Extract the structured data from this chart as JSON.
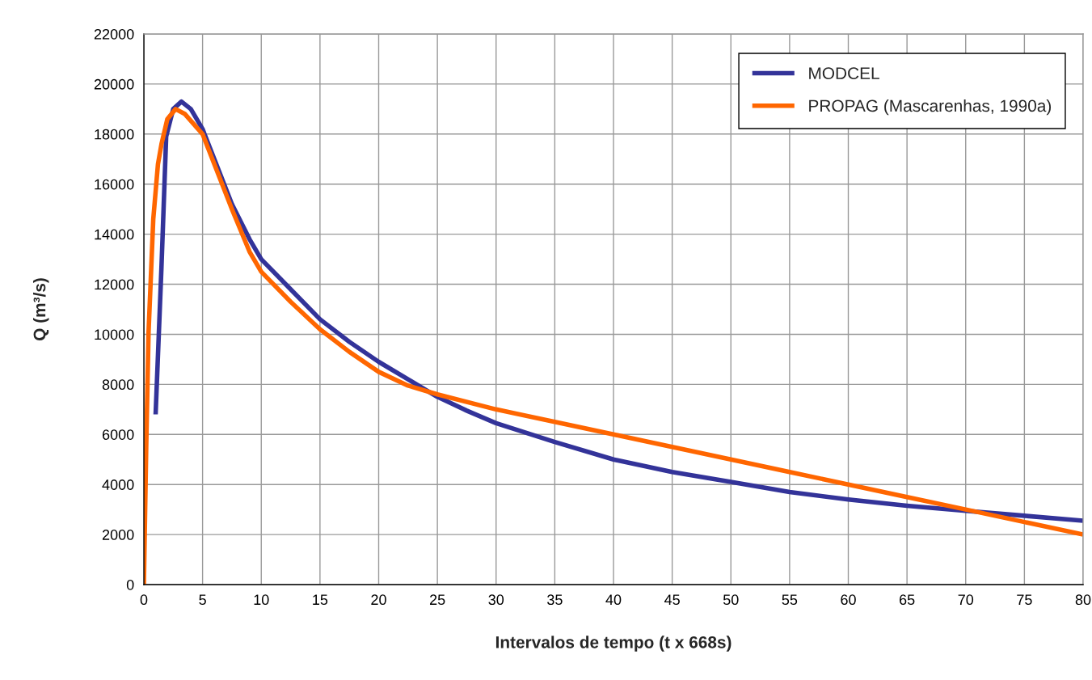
{
  "chart_data": {
    "type": "line",
    "xlabel": "Intervalos de tempo (t x 668s)",
    "ylabel": "Q (m³/s)",
    "xlim": [
      0,
      80
    ],
    "xticks": [
      0,
      5,
      10,
      15,
      20,
      25,
      30,
      35,
      40,
      45,
      50,
      55,
      60,
      65,
      70,
      75,
      80
    ],
    "ylim": [
      0,
      22000
    ],
    "yticks": [
      0,
      2000,
      4000,
      6000,
      8000,
      10000,
      12000,
      14000,
      16000,
      18000,
      20000,
      22000
    ],
    "grid": true,
    "legend": "top right",
    "marker": "none",
    "line_style": "solid",
    "series": [
      {
        "name": "MODCEL",
        "color": "#333399",
        "x": [
          1,
          1.5,
          1.9,
          2.5,
          3.2,
          4,
          5,
          6,
          7.5,
          9,
          10,
          12.5,
          15,
          17.5,
          20,
          22.5,
          25,
          27.5,
          30,
          35,
          40,
          45,
          50,
          55,
          60,
          65,
          70,
          75,
          80
        ],
        "values": [
          6800,
          12700,
          17900,
          19000,
          19300,
          19000,
          18200,
          17000,
          15200,
          13800,
          13000,
          11800,
          10600,
          9700,
          8900,
          8200,
          7500,
          6950,
          6450,
          5700,
          5000,
          4500,
          4100,
          3700,
          3400,
          3150,
          2950,
          2750,
          2550
        ]
      },
      {
        "name": "PROPAG (Mascarenhas, 1990a)",
        "color": "#ff6600",
        "x": [
          0,
          0.2,
          0.4,
          0.8,
          1.2,
          1.5,
          2,
          2.7,
          3.5,
          5,
          6,
          7.5,
          9,
          10,
          12.5,
          15,
          17.5,
          20,
          22.5,
          25,
          30,
          35,
          40,
          45,
          50,
          55,
          60,
          65,
          70,
          75,
          80
        ],
        "values": [
          0,
          5500,
          10100,
          14600,
          16800,
          17600,
          18600,
          19000,
          18800,
          18000,
          16800,
          15000,
          13300,
          12500,
          11300,
          10200,
          9300,
          8500,
          7950,
          7600,
          7000,
          6500,
          6000,
          5500,
          5000,
          4500,
          4000,
          3500,
          3000,
          2500,
          2000
        ]
      }
    ]
  }
}
